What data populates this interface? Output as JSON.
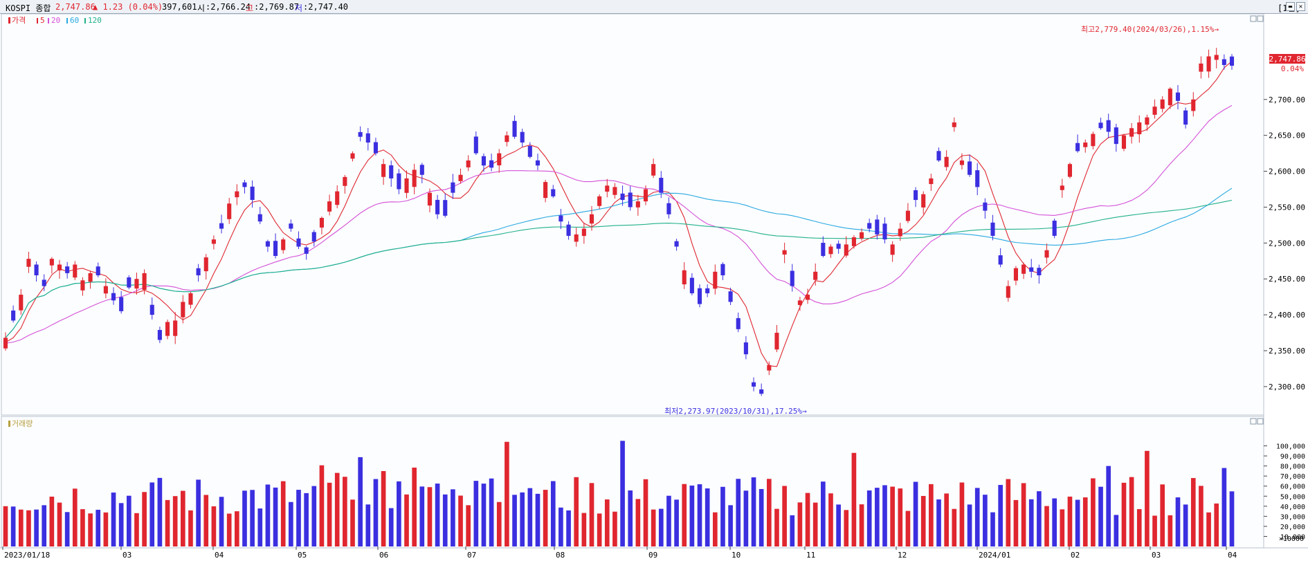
{
  "header": {
    "symbol": "KOSPI 종합",
    "price": "2,747.86",
    "change": "▲ 1.23 (0.04%)",
    "volume": "397,601",
    "open_label": "시",
    "open": ":2,766.24",
    "high_label": "고",
    "high": ":2,769.87",
    "low_label": "저",
    "low": ":2,747.40",
    "period": "[1일]"
  },
  "colors": {
    "up": "#e0262f",
    "down": "#3b2fe0",
    "ma5": "#e0262f",
    "ma20": "#d64fd6",
    "ma60": "#29a8e0",
    "ma120": "#22b08a"
  },
  "chart_data": [
    {
      "type": "candlestick",
      "legend": [
        "가격",
        "5",
        "20",
        "60",
        "120"
      ],
      "y_ticks": [
        "2,300.00",
        "2,350.00",
        "2,400.00",
        "2,450.00",
        "2,500.00",
        "2,550.00",
        "2,600.00",
        "2,650.00",
        "2,700.00"
      ],
      "ylim": [
        2270,
        2800
      ],
      "current_price": "2,747.86",
      "current_change": "0.04%",
      "annotation_high": "최고2,779.40(2024/03/26),1.15%→",
      "annotation_low": "최저2,273.97(2023/10/31),17.25%→",
      "x_ticks": [
        "2023/01/18",
        "03",
        "04",
        "05",
        "06",
        "07",
        "08",
        "09",
        "10",
        "11",
        "12",
        "2024/01",
        "02",
        "03",
        "04"
      ],
      "closes": [
        2368,
        2392,
        2428,
        2478,
        2455,
        2440,
        2478,
        2470,
        2458,
        2470,
        2448,
        2458,
        2455,
        2440,
        2420,
        2405,
        2438,
        2450,
        2458,
        2400,
        2365,
        2390,
        2392,
        2418,
        2430,
        2455,
        2480,
        2505,
        2520,
        2555,
        2572,
        2578,
        2560,
        2530,
        2495,
        2482,
        2505,
        2520,
        2495,
        2485,
        2502,
        2535,
        2558,
        2572,
        2592,
        2625,
        2648,
        2640,
        2625,
        2610,
        2590,
        2575,
        2590,
        2602,
        2595,
        2570,
        2540,
        2538,
        2570,
        2595,
        2615,
        2625,
        2608,
        2605,
        2625,
        2650,
        2648,
        2640,
        2620,
        2608,
        2585,
        2565,
        2530,
        2510,
        2512,
        2520,
        2540,
        2565,
        2580,
        2578,
        2560,
        2550,
        2558,
        2575,
        2610,
        2570,
        2540,
        2495,
        2462,
        2430,
        2415,
        2430,
        2460,
        2455,
        2418,
        2380,
        2345,
        2300,
        2290,
        2330,
        2375,
        2490,
        2440,
        2420,
        2428,
        2460,
        2482,
        2495,
        2492,
        2498,
        2508,
        2515,
        2520,
        2512,
        2505,
        2498,
        2520,
        2545,
        2560,
        2568,
        2590,
        2615,
        2620,
        2668,
        2615,
        2595,
        2578,
        2545,
        2510,
        2470,
        2440,
        2465,
        2470,
        2460,
        2455,
        2490,
        2510,
        2580,
        2610,
        2628,
        2640,
        2652,
        2660,
        2655,
        2638,
        2650,
        2660,
        2668,
        2675,
        2690,
        2700,
        2715,
        2698,
        2665,
        2700,
        2750,
        2760,
        2762,
        2748,
        2747
      ],
      "ma_series": [
        "5",
        "20",
        "60",
        "120"
      ]
    },
    {
      "type": "bar",
      "title": "거래량",
      "unit": "×10000",
      "y_ticks": [
        "10,000",
        "20,000",
        "30,000",
        "40,000",
        "50,000",
        "60,000",
        "70,000",
        "80,000",
        "90,000",
        "100,000"
      ],
      "ylim": [
        0,
        110000
      ]
    }
  ]
}
